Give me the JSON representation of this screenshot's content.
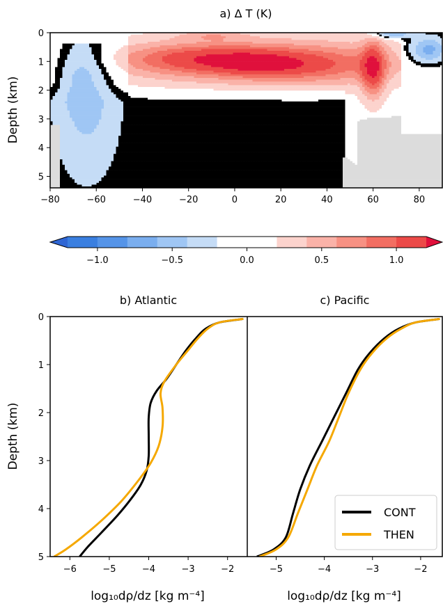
{
  "chart_data": [
    {
      "type": "heatmap",
      "title": "a) Δ T (K)",
      "xlabel": "",
      "ylabel": "Depth (km)",
      "xlim": [
        -80,
        90
      ],
      "ylim": [
        5.4,
        0
      ],
      "xticks": [
        "−80",
        "−60",
        "−40",
        "−20",
        "0",
        "20",
        "40",
        "60",
        "80"
      ],
      "yticks": [
        "0",
        "1",
        "2",
        "3",
        "4",
        "5"
      ],
      "colorbar": {
        "range": [
          -1.2,
          1.2
        ],
        "step": 0.2,
        "ticks": [
          "−1.0",
          "−0.5",
          "0.0",
          "0.5",
          "1.0"
        ],
        "colors_neg": [
          "#3a7fe0",
          "#5594e8",
          "#7aaeef",
          "#9fc6f4",
          "#c5dcf6"
        ],
        "color_zero": "#ffffff",
        "colors_pos": [
          "#fcd3cd",
          "#fab2a8",
          "#f79183",
          "#f26e62",
          "#ec4a48"
        ],
        "extend_min": "#2f66d4",
        "extend_max": "#e0103c"
      },
      "land_color": "#dcdcdc",
      "features": [
        {
          "name": "warm band",
          "approx_value": 0.8,
          "lat_range": [
            -40,
            70
          ],
          "depth_range_km": [
            0.3,
            2.0
          ]
        },
        {
          "name": "warm core south",
          "approx_value": 1.2,
          "lat_range": [
            -40,
            25
          ],
          "depth_range_km": [
            0.4,
            1.4
          ]
        },
        {
          "name": "warm core north",
          "approx_value": 1.2,
          "lat_range": [
            56,
            64
          ],
          "depth_range_km": [
            0.6,
            2.3
          ]
        },
        {
          "name": "deep cooling",
          "approx_value": -0.15,
          "lat_range": [
            -75,
            47
          ],
          "depth_range_km": [
            2.5,
            5.4
          ]
        },
        {
          "name": "southern cold column",
          "approx_value": -0.35,
          "lat_range": [
            -75,
            -48
          ],
          "depth_range_km": [
            0.5,
            4.0
          ]
        },
        {
          "name": "arctic surface cooling",
          "approx_value": -0.6,
          "lat_range": [
            76,
            90
          ],
          "depth_range_km": [
            0.2,
            1.0
          ]
        }
      ]
    },
    {
      "type": "line",
      "title": "b) Atlantic",
      "xlabel": "log₁₀dρ/dz [kg m⁻⁴]",
      "ylabel": "Depth (km)",
      "xlim": [
        -6.5,
        -1.5
      ],
      "ylim": [
        5,
        0
      ],
      "xticks": [
        "−6",
        "−5",
        "−4",
        "−3",
        "−2"
      ],
      "yticks": [
        "0",
        "1",
        "2",
        "3",
        "4",
        "5"
      ],
      "series": [
        {
          "name": "CONT",
          "color": "#000000",
          "points": [
            [
              -1.6,
              0.05
            ],
            [
              -2.2,
              0.12
            ],
            [
              -2.55,
              0.25
            ],
            [
              -2.8,
              0.45
            ],
            [
              -3.05,
              0.7
            ],
            [
              -3.3,
              1.0
            ],
            [
              -3.55,
              1.3
            ],
            [
              -3.8,
              1.55
            ],
            [
              -3.95,
              1.8
            ],
            [
              -4.0,
              2.1
            ],
            [
              -4.0,
              2.5
            ],
            [
              -4.0,
              2.9
            ],
            [
              -4.05,
              3.2
            ],
            [
              -4.2,
              3.5
            ],
            [
              -4.45,
              3.8
            ],
            [
              -4.8,
              4.15
            ],
            [
              -5.2,
              4.5
            ],
            [
              -5.55,
              4.8
            ],
            [
              -5.75,
              5.0
            ]
          ]
        },
        {
          "name": "THEN",
          "color": "#f5a800",
          "points": [
            [
              -1.6,
              0.05
            ],
            [
              -2.2,
              0.12
            ],
            [
              -2.5,
              0.25
            ],
            [
              -2.75,
              0.45
            ],
            [
              -3.0,
              0.7
            ],
            [
              -3.3,
              1.0
            ],
            [
              -3.6,
              1.35
            ],
            [
              -3.7,
              1.6
            ],
            [
              -3.65,
              1.9
            ],
            [
              -3.65,
              2.3
            ],
            [
              -3.75,
              2.7
            ],
            [
              -3.95,
              3.05
            ],
            [
              -4.25,
              3.4
            ],
            [
              -4.7,
              3.85
            ],
            [
              -5.2,
              4.25
            ],
            [
              -5.7,
              4.6
            ],
            [
              -6.1,
              4.85
            ],
            [
              -6.4,
              5.0
            ]
          ]
        }
      ]
    },
    {
      "type": "line",
      "title": "c) Pacific",
      "xlabel": "log₁₀dρ/dz [kg m⁻⁴]",
      "ylabel": "",
      "xlim": [
        -5.6,
        -1.55
      ],
      "ylim": [
        5,
        0
      ],
      "xticks": [
        "−5",
        "−4",
        "−3",
        "−2"
      ],
      "yticks": [],
      "legend": "bottom-right",
      "series": [
        {
          "name": "CONT",
          "color": "#000000",
          "points": [
            [
              -1.6,
              0.05
            ],
            [
              -2.1,
              0.12
            ],
            [
              -2.45,
              0.25
            ],
            [
              -2.75,
              0.45
            ],
            [
              -3.05,
              0.75
            ],
            [
              -3.3,
              1.1
            ],
            [
              -3.55,
              1.6
            ],
            [
              -3.8,
              2.1
            ],
            [
              -4.05,
              2.6
            ],
            [
              -4.3,
              3.1
            ],
            [
              -4.5,
              3.6
            ],
            [
              -4.65,
              4.1
            ],
            [
              -4.8,
              4.6
            ],
            [
              -5.05,
              4.85
            ],
            [
              -5.4,
              5.0
            ]
          ]
        },
        {
          "name": "THEN",
          "color": "#f5a800",
          "points": [
            [
              -1.6,
              0.05
            ],
            [
              -2.1,
              0.12
            ],
            [
              -2.4,
              0.25
            ],
            [
              -2.7,
              0.45
            ],
            [
              -3.0,
              0.75
            ],
            [
              -3.25,
              1.1
            ],
            [
              -3.5,
              1.6
            ],
            [
              -3.7,
              2.1
            ],
            [
              -3.9,
              2.6
            ],
            [
              -4.15,
              3.1
            ],
            [
              -4.35,
              3.6
            ],
            [
              -4.55,
              4.1
            ],
            [
              -4.75,
              4.6
            ],
            [
              -5.0,
              4.85
            ],
            [
              -5.35,
              5.0
            ]
          ]
        }
      ]
    }
  ]
}
